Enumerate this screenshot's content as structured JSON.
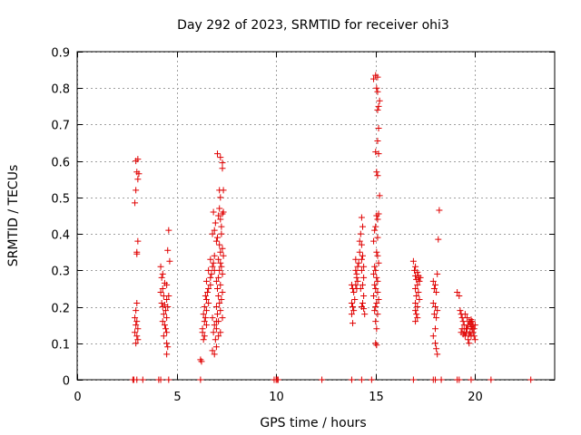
{
  "chart_data": {
    "type": "scatter",
    "title": "Day 292 of 2023, SRMTID for receiver ohi3",
    "xlabel": "GPS time / hours",
    "ylabel": "SRMTID / TECUs",
    "xlim": [
      0,
      24
    ],
    "ylim": [
      0,
      0.9
    ],
    "xticks": [
      0,
      5,
      10,
      15,
      20
    ],
    "yticks": [
      0,
      0.1,
      0.2,
      0.3,
      0.4,
      0.5,
      0.6,
      0.7,
      0.8,
      0.9
    ],
    "grid": true,
    "marker": "+",
    "color": "#e00000",
    "series": [
      {
        "name": "SRMTID",
        "points": [
          [
            2.8,
            0.0
          ],
          [
            2.85,
            0.0
          ],
          [
            3.0,
            0.0
          ],
          [
            3.3,
            0.0
          ],
          [
            4.1,
            0.0
          ],
          [
            4.2,
            0.0
          ],
          [
            4.6,
            0.0
          ],
          [
            6.2,
            0.0
          ],
          [
            9.9,
            0.0
          ],
          [
            10.0,
            0.0
          ],
          [
            10.05,
            0.0
          ],
          [
            10.1,
            0.0
          ],
          [
            12.3,
            0.0
          ],
          [
            13.8,
            0.0
          ],
          [
            14.3,
            0.0
          ],
          [
            14.8,
            0.0
          ],
          [
            16.9,
            0.0
          ],
          [
            17.9,
            0.0
          ],
          [
            18.0,
            0.0
          ],
          [
            18.3,
            0.0
          ],
          [
            19.1,
            0.0
          ],
          [
            19.2,
            0.0
          ],
          [
            19.8,
            0.0
          ],
          [
            20.8,
            0.0
          ],
          [
            22.8,
            0.0
          ],
          [
            2.95,
            0.6
          ],
          [
            3.05,
            0.605
          ],
          [
            3.0,
            0.57
          ],
          [
            3.1,
            0.565
          ],
          [
            3.05,
            0.55
          ],
          [
            2.95,
            0.52
          ],
          [
            2.9,
            0.485
          ],
          [
            3.05,
            0.38
          ],
          [
            3.0,
            0.35
          ],
          [
            3.0,
            0.345
          ],
          [
            3.0,
            0.21
          ],
          [
            2.95,
            0.19
          ],
          [
            2.9,
            0.17
          ],
          [
            3.0,
            0.16
          ],
          [
            2.95,
            0.15
          ],
          [
            3.05,
            0.14
          ],
          [
            2.9,
            0.13
          ],
          [
            3.0,
            0.12
          ],
          [
            3.05,
            0.11
          ],
          [
            2.95,
            0.1
          ],
          [
            4.2,
            0.31
          ],
          [
            4.3,
            0.29
          ],
          [
            4.25,
            0.28
          ],
          [
            4.4,
            0.265
          ],
          [
            4.5,
            0.26
          ],
          [
            4.3,
            0.25
          ],
          [
            4.2,
            0.24
          ],
          [
            4.35,
            0.23
          ],
          [
            4.5,
            0.22
          ],
          [
            4.25,
            0.21
          ],
          [
            4.4,
            0.205
          ],
          [
            4.3,
            0.2
          ],
          [
            4.45,
            0.19
          ],
          [
            4.35,
            0.18
          ],
          [
            4.5,
            0.17
          ],
          [
            4.3,
            0.16
          ],
          [
            4.4,
            0.15
          ],
          [
            4.45,
            0.14
          ],
          [
            4.5,
            0.13
          ],
          [
            4.35,
            0.12
          ],
          [
            4.5,
            0.1
          ],
          [
            4.55,
            0.09
          ],
          [
            4.5,
            0.07
          ],
          [
            4.6,
            0.41
          ],
          [
            4.55,
            0.355
          ],
          [
            4.65,
            0.325
          ],
          [
            4.6,
            0.23
          ],
          [
            4.55,
            0.2
          ],
          [
            6.2,
            0.055
          ],
          [
            6.25,
            0.05
          ],
          [
            6.3,
            0.13
          ],
          [
            6.4,
            0.12
          ],
          [
            6.35,
            0.11
          ],
          [
            6.3,
            0.14
          ],
          [
            6.5,
            0.15
          ],
          [
            6.4,
            0.16
          ],
          [
            6.45,
            0.17
          ],
          [
            6.35,
            0.18
          ],
          [
            6.5,
            0.19
          ],
          [
            6.4,
            0.2
          ],
          [
            6.6,
            0.21
          ],
          [
            6.5,
            0.22
          ],
          [
            6.45,
            0.23
          ],
          [
            6.55,
            0.24
          ],
          [
            6.6,
            0.25
          ],
          [
            6.7,
            0.26
          ],
          [
            6.5,
            0.27
          ],
          [
            6.7,
            0.28
          ],
          [
            6.75,
            0.29
          ],
          [
            6.6,
            0.3
          ],
          [
            6.8,
            0.31
          ],
          [
            6.85,
            0.32
          ],
          [
            6.7,
            0.33
          ],
          [
            6.9,
            0.34
          ],
          [
            6.9,
            0.3
          ],
          [
            6.8,
            0.17
          ],
          [
            6.9,
            0.15
          ],
          [
            7.0,
            0.16
          ],
          [
            6.85,
            0.13
          ],
          [
            6.95,
            0.11
          ],
          [
            7.0,
            0.09
          ],
          [
            6.8,
            0.08
          ],
          [
            6.9,
            0.07
          ],
          [
            6.85,
            0.46
          ],
          [
            6.95,
            0.43
          ],
          [
            6.9,
            0.41
          ],
          [
            6.8,
            0.4
          ],
          [
            7.0,
            0.38
          ],
          [
            7.05,
            0.39
          ],
          [
            7.1,
            0.45
          ],
          [
            7.2,
            0.44
          ],
          [
            7.3,
            0.455
          ],
          [
            7.25,
            0.42
          ],
          [
            7.15,
            0.37
          ],
          [
            7.3,
            0.36
          ],
          [
            7.2,
            0.35
          ],
          [
            7.35,
            0.34
          ],
          [
            7.1,
            0.33
          ],
          [
            7.2,
            0.32
          ],
          [
            7.25,
            0.31
          ],
          [
            7.15,
            0.3
          ],
          [
            7.3,
            0.29
          ],
          [
            7.1,
            0.28
          ],
          [
            7.0,
            0.27
          ],
          [
            7.2,
            0.26
          ],
          [
            7.05,
            0.25
          ],
          [
            7.3,
            0.24
          ],
          [
            7.1,
            0.23
          ],
          [
            7.25,
            0.22
          ],
          [
            7.15,
            0.21
          ],
          [
            7.0,
            0.2
          ],
          [
            7.2,
            0.19
          ],
          [
            7.05,
            0.18
          ],
          [
            7.3,
            0.17
          ],
          [
            7.1,
            0.16
          ],
          [
            7.0,
            0.14
          ],
          [
            7.2,
            0.13
          ],
          [
            7.1,
            0.12
          ],
          [
            7.05,
            0.62
          ],
          [
            7.2,
            0.61
          ],
          [
            7.3,
            0.595
          ],
          [
            7.3,
            0.58
          ],
          [
            7.15,
            0.52
          ],
          [
            7.35,
            0.52
          ],
          [
            7.2,
            0.5
          ],
          [
            7.15,
            0.47
          ],
          [
            7.25,
            0.4
          ],
          [
            7.35,
            0.46
          ],
          [
            13.8,
            0.26
          ],
          [
            13.85,
            0.25
          ],
          [
            13.9,
            0.24
          ],
          [
            13.95,
            0.22
          ],
          [
            13.8,
            0.21
          ],
          [
            13.85,
            0.2
          ],
          [
            13.9,
            0.19
          ],
          [
            13.8,
            0.18
          ],
          [
            13.85,
            0.155
          ],
          [
            14.0,
            0.3
          ],
          [
            14.05,
            0.29
          ],
          [
            14.1,
            0.31
          ],
          [
            14.15,
            0.32
          ],
          [
            14.0,
            0.33
          ],
          [
            14.05,
            0.28
          ],
          [
            14.1,
            0.27
          ],
          [
            14.0,
            0.26
          ],
          [
            14.05,
            0.25
          ],
          [
            14.2,
            0.38
          ],
          [
            14.3,
            0.445
          ],
          [
            14.35,
            0.42
          ],
          [
            14.25,
            0.4
          ],
          [
            14.3,
            0.37
          ],
          [
            14.2,
            0.35
          ],
          [
            14.35,
            0.34
          ],
          [
            14.3,
            0.33
          ],
          [
            14.4,
            0.31
          ],
          [
            14.3,
            0.3
          ],
          [
            14.4,
            0.28
          ],
          [
            14.35,
            0.26
          ],
          [
            14.25,
            0.25
          ],
          [
            14.4,
            0.23
          ],
          [
            14.35,
            0.21
          ],
          [
            14.3,
            0.2
          ],
          [
            14.4,
            0.195
          ],
          [
            14.45,
            0.18
          ],
          [
            14.9,
            0.825
          ],
          [
            15.0,
            0.835
          ],
          [
            15.1,
            0.83
          ],
          [
            15.05,
            0.8
          ],
          [
            15.1,
            0.79
          ],
          [
            15.2,
            0.765
          ],
          [
            15.15,
            0.75
          ],
          [
            15.1,
            0.74
          ],
          [
            15.15,
            0.69
          ],
          [
            15.1,
            0.655
          ],
          [
            15.0,
            0.625
          ],
          [
            15.15,
            0.62
          ],
          [
            15.05,
            0.57
          ],
          [
            15.1,
            0.56
          ],
          [
            15.2,
            0.505
          ],
          [
            15.15,
            0.455
          ],
          [
            15.05,
            0.45
          ],
          [
            15.1,
            0.44
          ],
          [
            15.0,
            0.42
          ],
          [
            14.95,
            0.41
          ],
          [
            15.1,
            0.39
          ],
          [
            14.9,
            0.38
          ],
          [
            15.05,
            0.35
          ],
          [
            15.1,
            0.34
          ],
          [
            15.15,
            0.32
          ],
          [
            14.95,
            0.31
          ],
          [
            15.0,
            0.3
          ],
          [
            14.9,
            0.29
          ],
          [
            15.05,
            0.28
          ],
          [
            15.1,
            0.27
          ],
          [
            14.95,
            0.26
          ],
          [
            15.0,
            0.25
          ],
          [
            15.1,
            0.24
          ],
          [
            14.9,
            0.23
          ],
          [
            15.15,
            0.22
          ],
          [
            15.05,
            0.21
          ],
          [
            15.0,
            0.2
          ],
          [
            14.95,
            0.19
          ],
          [
            15.1,
            0.18
          ],
          [
            15.0,
            0.16
          ],
          [
            15.05,
            0.14
          ],
          [
            15.0,
            0.1
          ],
          [
            15.05,
            0.095
          ],
          [
            16.9,
            0.325
          ],
          [
            17.0,
            0.31
          ],
          [
            16.95,
            0.3
          ],
          [
            17.1,
            0.295
          ],
          [
            17.0,
            0.285
          ],
          [
            17.15,
            0.28
          ],
          [
            17.05,
            0.275
          ],
          [
            17.2,
            0.27
          ],
          [
            17.1,
            0.26
          ],
          [
            17.0,
            0.25
          ],
          [
            17.15,
            0.24
          ],
          [
            17.05,
            0.23
          ],
          [
            17.2,
            0.22
          ],
          [
            17.0,
            0.21
          ],
          [
            17.1,
            0.2
          ],
          [
            17.0,
            0.19
          ],
          [
            17.05,
            0.18
          ],
          [
            17.1,
            0.17
          ],
          [
            17.0,
            0.16
          ],
          [
            17.15,
            0.285
          ],
          [
            17.25,
            0.28
          ],
          [
            17.9,
            0.27
          ],
          [
            18.0,
            0.26
          ],
          [
            17.95,
            0.25
          ],
          [
            18.05,
            0.24
          ],
          [
            17.9,
            0.21
          ],
          [
            18.0,
            0.2
          ],
          [
            18.1,
            0.19
          ],
          [
            17.95,
            0.18
          ],
          [
            18.05,
            0.17
          ],
          [
            18.0,
            0.14
          ],
          [
            17.9,
            0.12
          ],
          [
            18.0,
            0.1
          ],
          [
            18.05,
            0.085
          ],
          [
            18.1,
            0.07
          ],
          [
            18.2,
            0.465
          ],
          [
            18.15,
            0.385
          ],
          [
            18.1,
            0.29
          ],
          [
            19.1,
            0.24
          ],
          [
            19.2,
            0.23
          ],
          [
            19.25,
            0.19
          ],
          [
            19.3,
            0.18
          ],
          [
            19.35,
            0.17
          ],
          [
            19.4,
            0.16
          ],
          [
            19.45,
            0.15
          ],
          [
            19.35,
            0.14
          ],
          [
            19.3,
            0.13
          ],
          [
            19.4,
            0.125
          ],
          [
            19.5,
            0.12
          ],
          [
            19.55,
            0.13
          ],
          [
            19.6,
            0.14
          ],
          [
            19.65,
            0.15
          ],
          [
            19.7,
            0.16
          ],
          [
            19.75,
            0.155
          ],
          [
            19.8,
            0.145
          ],
          [
            19.85,
            0.14
          ],
          [
            19.9,
            0.13
          ],
          [
            19.95,
            0.12
          ],
          [
            20.0,
            0.11
          ],
          [
            19.7,
            0.1
          ],
          [
            19.8,
            0.12
          ],
          [
            19.6,
            0.17
          ],
          [
            19.9,
            0.15
          ],
          [
            19.5,
            0.18
          ],
          [
            19.85,
            0.16
          ],
          [
            19.65,
            0.11
          ],
          [
            19.95,
            0.14
          ],
          [
            19.75,
            0.13
          ],
          [
            19.55,
            0.14
          ],
          [
            20.0,
            0.15
          ],
          [
            19.45,
            0.13
          ],
          [
            19.8,
            0.165
          ],
          [
            19.7,
            0.125
          ]
        ]
      }
    ]
  }
}
